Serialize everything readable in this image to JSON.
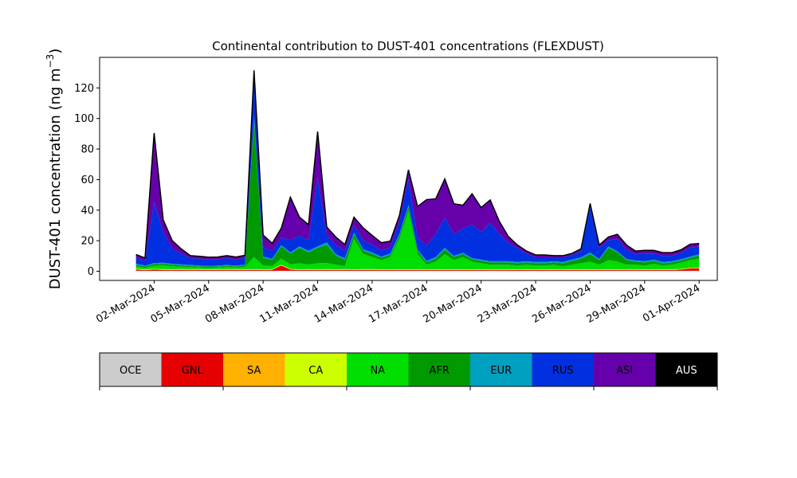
{
  "chart_data": {
    "type": "area",
    "stacked": true,
    "title": "Continental contribution to DUST-401 concentrations (FLEXDUST)",
    "ylabel": "DUST-401 concentration (ng m",
    "ylabel_sup": "−3",
    "ylabel_close": ")",
    "ylim": [
      -6,
      140
    ],
    "yticks": [
      0,
      20,
      40,
      60,
      80,
      100,
      120
    ],
    "xlim": [
      "2024-02-28T00:00",
      "2024-04-02T00:00"
    ],
    "xticks": [
      {
        "date": "2024-03-02",
        "label": "02-Mar-2024"
      },
      {
        "date": "2024-03-05",
        "label": "05-Mar-2024"
      },
      {
        "date": "2024-03-08",
        "label": "08-Mar-2024"
      },
      {
        "date": "2024-03-11",
        "label": "11-Mar-2024"
      },
      {
        "date": "2024-03-14",
        "label": "14-Mar-2024"
      },
      {
        "date": "2024-03-17",
        "label": "17-Mar-2024"
      },
      {
        "date": "2024-03-20",
        "label": "20-Mar-2024"
      },
      {
        "date": "2024-03-23",
        "label": "23-Mar-2024"
      },
      {
        "date": "2024-03-26",
        "label": "26-Mar-2024"
      },
      {
        "date": "2024-03-29",
        "label": "29-Mar-2024"
      },
      {
        "date": "2024-04-01",
        "label": "01-Apr-2024"
      }
    ],
    "grid": false,
    "legend_placement": "bottom",
    "x": [
      "2024-03-01T00:00",
      "2024-03-01T12:00",
      "2024-03-02T00:00",
      "2024-03-02T12:00",
      "2024-03-03T00:00",
      "2024-03-03T12:00",
      "2024-03-04T00:00",
      "2024-03-04T12:00",
      "2024-03-05T00:00",
      "2024-03-05T12:00",
      "2024-03-06T00:00",
      "2024-03-06T12:00",
      "2024-03-07T00:00",
      "2024-03-07T12:00",
      "2024-03-08T00:00",
      "2024-03-08T12:00",
      "2024-03-09T00:00",
      "2024-03-09T12:00",
      "2024-03-10T00:00",
      "2024-03-10T12:00",
      "2024-03-11T00:00",
      "2024-03-11T12:00",
      "2024-03-12T00:00",
      "2024-03-12T12:00",
      "2024-03-13T00:00",
      "2024-03-13T12:00",
      "2024-03-14T00:00",
      "2024-03-14T12:00",
      "2024-03-15T00:00",
      "2024-03-15T12:00",
      "2024-03-16T00:00",
      "2024-03-16T12:00",
      "2024-03-17T00:00",
      "2024-03-17T12:00",
      "2024-03-18T00:00",
      "2024-03-18T12:00",
      "2024-03-19T00:00",
      "2024-03-19T12:00",
      "2024-03-20T00:00",
      "2024-03-20T12:00",
      "2024-03-21T00:00",
      "2024-03-21T12:00",
      "2024-03-22T00:00",
      "2024-03-22T12:00",
      "2024-03-23T00:00",
      "2024-03-23T12:00",
      "2024-03-24T00:00",
      "2024-03-24T12:00",
      "2024-03-25T00:00",
      "2024-03-25T12:00",
      "2024-03-26T00:00",
      "2024-03-26T12:00",
      "2024-03-27T00:00",
      "2024-03-27T12:00",
      "2024-03-28T00:00",
      "2024-03-28T12:00",
      "2024-03-29T00:00",
      "2024-03-29T12:00",
      "2024-03-30T00:00",
      "2024-03-30T12:00",
      "2024-03-31T00:00",
      "2024-03-31T12:00",
      "2024-04-01T00:00"
    ],
    "series": [
      {
        "name": "OCE",
        "color": "#cccccc",
        "values": [
          0.3,
          0.3,
          0.3,
          0.3,
          0.3,
          0.3,
          0.3,
          0.3,
          0.3,
          0.3,
          0.3,
          0.3,
          0.3,
          0.3,
          0.3,
          0.3,
          0.3,
          0.3,
          0.3,
          0.3,
          0.3,
          0.3,
          0.3,
          0.3,
          0.3,
          0.3,
          0.3,
          0.3,
          0.3,
          0.3,
          0.3,
          0.3,
          0.3,
          0.3,
          0.3,
          0.3,
          0.3,
          0.3,
          0.3,
          0.3,
          0.3,
          0.3,
          0.3,
          0.3,
          0.3,
          0.3,
          0.3,
          0.3,
          0.3,
          0.3,
          0.3,
          0.3,
          0.3,
          0.3,
          0.3,
          0.3,
          0.3,
          0.3,
          0.3,
          0.3,
          0.3,
          0.3,
          0.3
        ]
      },
      {
        "name": "GNL",
        "color": "#e60000",
        "values": [
          0.8,
          0.5,
          0.8,
          0.6,
          0.5,
          0.6,
          0.5,
          0.6,
          0.5,
          0.6,
          0.5,
          0.6,
          0.5,
          0.6,
          0.5,
          0.6,
          3.5,
          0.8,
          0.5,
          0.6,
          0.5,
          0.6,
          0.5,
          0.6,
          0.5,
          0.6,
          0.6,
          0.5,
          0.5,
          0.5,
          0.5,
          0.5,
          0.5,
          0.5,
          0.5,
          0.5,
          0.5,
          0.5,
          0.5,
          0.5,
          0.5,
          0.5,
          0.5,
          0.5,
          0.5,
          0.5,
          0.5,
          0.5,
          0.5,
          0.5,
          0.5,
          0.5,
          0.5,
          0.5,
          0.5,
          0.5,
          0.5,
          0.5,
          0.5,
          0.5,
          0.8,
          1.5,
          1.5
        ]
      },
      {
        "name": "SA",
        "color": "#ffb000",
        "values": [
          0.2,
          0.2,
          0.2,
          0.2,
          0.2,
          0.2,
          0.2,
          0.2,
          0.2,
          0.2,
          0.2,
          0.2,
          0.2,
          0.2,
          0.2,
          0.2,
          0.2,
          0.2,
          0.2,
          0.2,
          0.2,
          0.2,
          0.2,
          0.2,
          0.2,
          0.2,
          0.2,
          0.2,
          0.2,
          0.2,
          0.2,
          0.2,
          0.2,
          0.2,
          0.2,
          0.2,
          0.2,
          0.2,
          0.2,
          0.2,
          0.2,
          0.2,
          0.2,
          0.2,
          0.2,
          0.2,
          0.2,
          0.2,
          0.2,
          0.2,
          0.2,
          0.2,
          0.2,
          0.2,
          0.2,
          0.2,
          0.2,
          0.2,
          0.2,
          0.2,
          0.2,
          0.2,
          0.2
        ]
      },
      {
        "name": "CA",
        "color": "#ccff00",
        "values": [
          0.3,
          0.3,
          0.3,
          0.3,
          0.3,
          0.3,
          0.3,
          0.3,
          0.3,
          0.3,
          0.3,
          0.3,
          0.3,
          0.3,
          0.3,
          0.3,
          0.3,
          0.3,
          0.3,
          0.3,
          0.3,
          0.3,
          0.3,
          0.3,
          0.3,
          0.3,
          0.3,
          0.3,
          0.3,
          0.3,
          0.3,
          0.3,
          0.3,
          0.3,
          0.3,
          0.3,
          0.3,
          0.3,
          0.3,
          0.3,
          0.3,
          0.3,
          0.3,
          0.3,
          0.3,
          0.3,
          0.3,
          0.3,
          0.3,
          0.3,
          0.3,
          0.3,
          0.3,
          0.3,
          0.3,
          0.3,
          0.3,
          0.3,
          0.3,
          0.3,
          0.3,
          0.3,
          0.3
        ]
      },
      {
        "name": "NA",
        "color": "#00dd00",
        "values": [
          1.5,
          1.0,
          2.0,
          2.5,
          2.0,
          1.5,
          1.5,
          1.0,
          1.0,
          1.0,
          1.5,
          1.0,
          1.5,
          8.0,
          2.5,
          2.0,
          4.0,
          3.0,
          4.0,
          3.0,
          4.0,
          4.0,
          3.0,
          2.0,
          20.0,
          10.0,
          8.0,
          6.0,
          8.0,
          20.0,
          38.0,
          10.0,
          3.0,
          5.0,
          10.0,
          6.0,
          8.0,
          5.0,
          4.0,
          3.0,
          3.0,
          3.0,
          2.5,
          3.0,
          2.5,
          2.5,
          3.0,
          2.0,
          3.0,
          4.0,
          5.0,
          3.0,
          6.0,
          5.0,
          3.0,
          3.0,
          2.5,
          3.5,
          2.5,
          3.0,
          4.0,
          5.0,
          6.0
        ]
      },
      {
        "name": "AFR",
        "color": "#009900",
        "values": [
          1.0,
          0.8,
          1.0,
          1.0,
          1.0,
          1.0,
          0.8,
          0.8,
          0.8,
          0.8,
          0.8,
          0.8,
          1.0,
          90.0,
          5.0,
          4.0,
          8.0,
          7.0,
          10.0,
          8.0,
          10.0,
          12.0,
          6.0,
          4.0,
          3.0,
          2.0,
          2.0,
          1.5,
          1.5,
          2.0,
          3.0,
          2.0,
          1.5,
          2.0,
          3.0,
          2.0,
          2.0,
          1.5,
          1.5,
          1.5,
          1.5,
          1.5,
          1.5,
          1.5,
          1.5,
          1.5,
          1.5,
          2.0,
          2.5,
          3.0,
          5.0,
          3.0,
          8.0,
          6.0,
          3.0,
          2.0,
          2.0,
          2.0,
          1.5,
          1.5,
          1.5,
          1.5,
          2.0
        ]
      },
      {
        "name": "EUR",
        "color": "#00a0c0",
        "values": [
          0.8,
          0.5,
          0.8,
          0.7,
          0.6,
          0.6,
          0.5,
          0.5,
          0.5,
          0.5,
          0.5,
          0.5,
          0.5,
          2.0,
          0.8,
          0.8,
          0.8,
          0.8,
          1.0,
          1.0,
          1.0,
          1.5,
          1.0,
          1.0,
          1.0,
          1.0,
          1.0,
          0.8,
          0.8,
          1.0,
          1.0,
          1.0,
          1.0,
          1.0,
          1.0,
          0.8,
          0.8,
          0.8,
          0.8,
          0.8,
          0.8,
          0.8,
          0.8,
          0.8,
          0.8,
          0.8,
          0.8,
          0.8,
          0.8,
          0.8,
          1.0,
          0.8,
          1.0,
          0.8,
          0.8,
          0.8,
          0.8,
          0.8,
          0.8,
          0.8,
          0.8,
          0.8,
          0.8
        ]
      },
      {
        "name": "RUS",
        "color": "#0030e0",
        "values": [
          4.0,
          3.0,
          40.0,
          20.0,
          10.0,
          7.0,
          4.5,
          4.5,
          4.0,
          4.0,
          4.5,
          4.0,
          4.5,
          25.0,
          6.0,
          5.0,
          5.0,
          8.0,
          7.0,
          7.0,
          45.0,
          5.0,
          6.0,
          5.0,
          5.0,
          6.0,
          5.0,
          4.0,
          4.0,
          8.0,
          17.0,
          8.0,
          10.0,
          15.0,
          20.0,
          14.0,
          16.0,
          22.0,
          18.0,
          25.0,
          18.0,
          12.0,
          9.0,
          5.0,
          3.0,
          3.0,
          2.5,
          3.0,
          3.0,
          4.0,
          30.0,
          7.0,
          4.0,
          8.0,
          6.0,
          4.0,
          5.0,
          4.0,
          4.0,
          3.5,
          4.0,
          6.0,
          5.0
        ]
      },
      {
        "name": "ASI",
        "color": "#6600aa",
        "values": [
          2.0,
          2.0,
          45.0,
          8.0,
          5.0,
          3.0,
          1.5,
          1.5,
          1.5,
          1.5,
          1.5,
          1.5,
          1.5,
          5.0,
          8.0,
          5.0,
          6.0,
          28.0,
          12.0,
          10.0,
          30.0,
          5.0,
          5.0,
          4.0,
          5.0,
          8.0,
          6.0,
          5.0,
          4.0,
          4.0,
          6.0,
          20.0,
          30.0,
          23.0,
          25.0,
          20.0,
          15.0,
          20.0,
          16.0,
          15.0,
          8.0,
          4.0,
          2.0,
          1.5,
          1.5,
          1.5,
          1.0,
          1.0,
          1.0,
          1.5,
          2.0,
          2.0,
          2.0,
          3.0,
          3.0,
          2.0,
          2.0,
          2.0,
          2.0,
          2.0,
          2.0,
          2.0,
          2.0
        ]
      },
      {
        "name": "AUS",
        "color": "#000000",
        "values": [
          0.1,
          0.1,
          0.1,
          0.1,
          0.1,
          0.1,
          0.1,
          0.1,
          0.1,
          0.1,
          0.1,
          0.1,
          0.1,
          0.1,
          0.1,
          0.1,
          0.1,
          0.1,
          0.1,
          0.1,
          0.1,
          0.1,
          0.1,
          0.1,
          0.1,
          0.1,
          0.1,
          0.1,
          0.1,
          0.1,
          0.1,
          0.1,
          0.1,
          0.1,
          0.1,
          0.1,
          0.1,
          0.1,
          0.1,
          0.1,
          0.1,
          0.1,
          0.1,
          0.1,
          0.1,
          0.1,
          0.1,
          0.1,
          0.1,
          0.1,
          0.1,
          0.1,
          0.1,
          0.1,
          0.1,
          0.1,
          0.1,
          0.1,
          0.1,
          0.1,
          0.1,
          0.1,
          0.1
        ]
      }
    ],
    "total_line_color": "#000000",
    "legend_label_colors": {
      "OCE": "#000000",
      "GNL": "#000000",
      "SA": "#000000",
      "CA": "#000000",
      "NA": "#000000",
      "AFR": "#000000",
      "EUR": "#000000",
      "RUS": "#000000",
      "ASI": "#000000",
      "AUS": "#ffffff"
    }
  }
}
